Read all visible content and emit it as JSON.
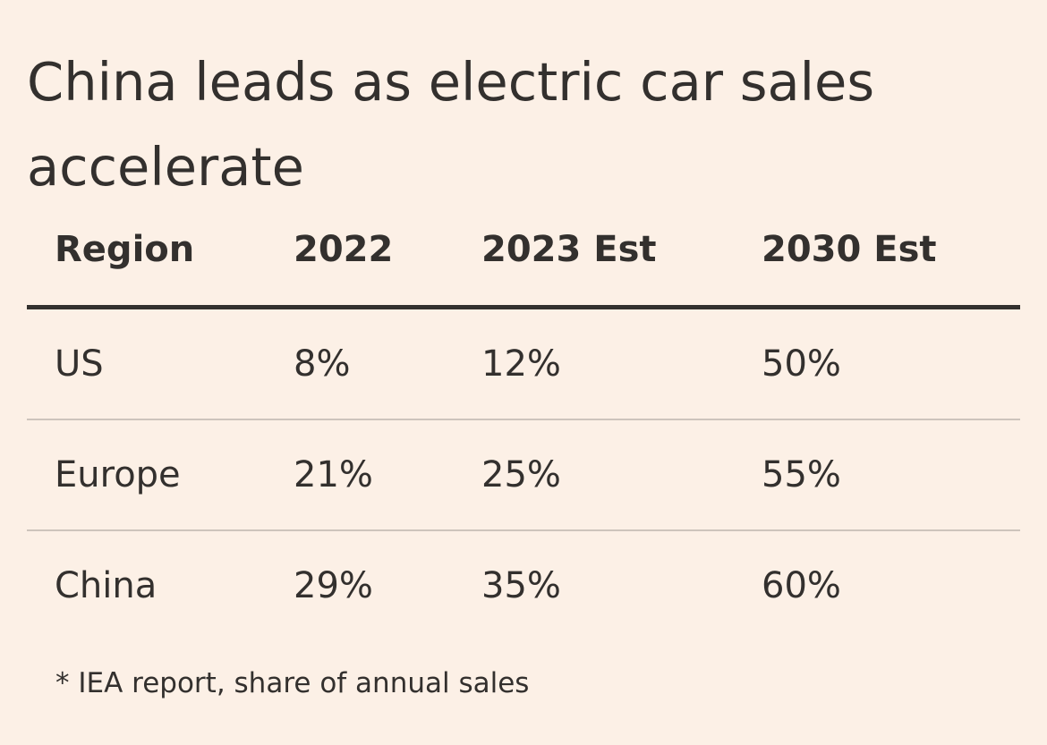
{
  "chart_data": {
    "type": "table",
    "title": "China leads as electric car sales accelerate",
    "columns": [
      "Region",
      "2022",
      "2023 Est",
      "2030 Est"
    ],
    "rows": [
      [
        "US",
        "8%",
        "12%",
        "50%"
      ],
      [
        "Europe",
        "21%",
        "25%",
        "55%"
      ],
      [
        "China",
        "29%",
        "35%",
        "60%"
      ]
    ],
    "footnote": "* IEA report, share of annual sales"
  },
  "colors": {
    "background": "#fcf0e6",
    "text": "#33302e",
    "header_rule": "#33302e",
    "row_rule": "#cdc4bc"
  }
}
